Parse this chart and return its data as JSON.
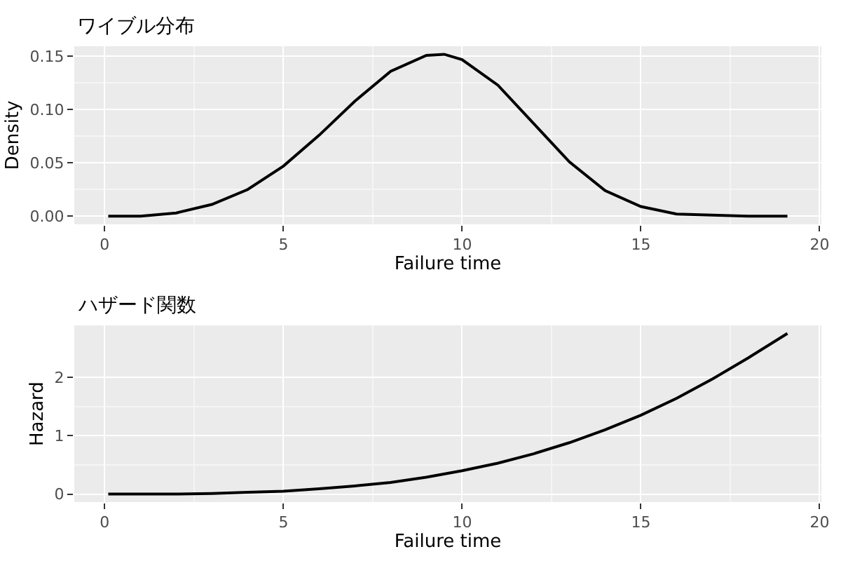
{
  "chart_data": [
    {
      "type": "line",
      "title": "ワイブル分布",
      "xlabel": "Failure time",
      "ylabel": "Density",
      "x": [
        0.1,
        1,
        2,
        3,
        4,
        5,
        6,
        7,
        8,
        9,
        9.5,
        10,
        11,
        12,
        13,
        14,
        15,
        16,
        17,
        18,
        19.1
      ],
      "series": [
        {
          "color": "#000000",
          "values": [
            0.0,
            0.0,
            0.003,
            0.011,
            0.025,
            0.047,
            0.076,
            0.108,
            0.136,
            0.151,
            0.152,
            0.147,
            0.123,
            0.087,
            0.051,
            0.024,
            0.009,
            0.002,
            0.001,
            0.0,
            0.0
          ]
        }
      ],
      "xlim": [
        -0.85,
        20.05
      ],
      "xticks": [
        0,
        5,
        10,
        15,
        20
      ],
      "ylim": [
        -0.0076,
        0.1596
      ],
      "yticks": [
        {
          "value": 0,
          "label": "0.00"
        },
        {
          "value": 0.05,
          "label": "0.05"
        },
        {
          "value": 0.1,
          "label": "0.10"
        },
        {
          "value": 0.15,
          "label": "0.15"
        }
      ],
      "grid": true,
      "marker": "none",
      "line_style": "solid"
    },
    {
      "type": "line",
      "title": "ハザード関数",
      "xlabel": "Failure time",
      "ylabel": "Hazard",
      "x": [
        0.1,
        1,
        2,
        3,
        4,
        5,
        6,
        7,
        8,
        9,
        10,
        11,
        12,
        13,
        14,
        15,
        16,
        17,
        18,
        19.1
      ],
      "series": [
        {
          "color": "#000000",
          "values": [
            0.0,
            0.0,
            0.0,
            0.01,
            0.03,
            0.05,
            0.09,
            0.14,
            0.2,
            0.29,
            0.4,
            0.53,
            0.69,
            0.88,
            1.1,
            1.35,
            1.64,
            1.97,
            2.33,
            2.75
          ]
        }
      ],
      "xlim": [
        -0.85,
        20.05
      ],
      "xticks": [
        0,
        5,
        10,
        15,
        20
      ],
      "ylim": [
        -0.137,
        2.887
      ],
      "yticks": [
        0,
        1,
        2
      ],
      "grid": true,
      "marker": "none",
      "line_style": "solid"
    }
  ]
}
